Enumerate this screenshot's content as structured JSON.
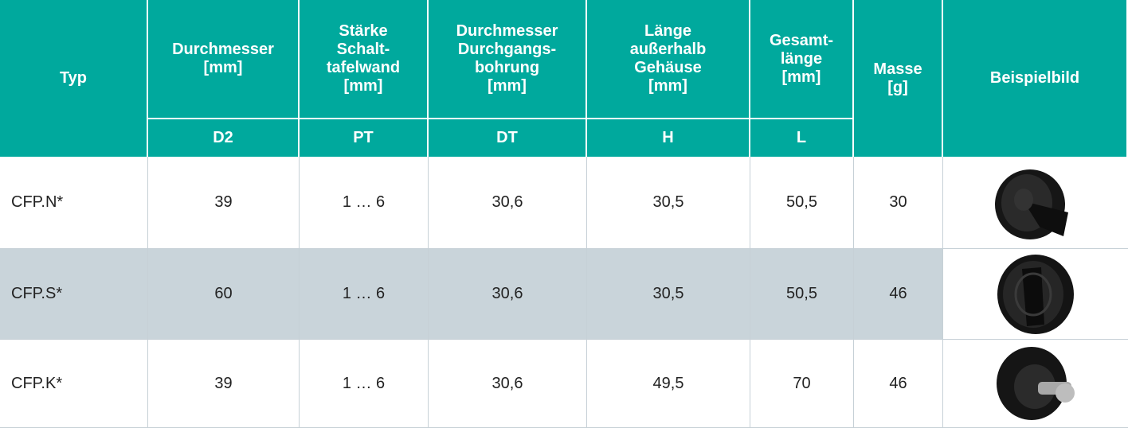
{
  "table": {
    "columns": [
      {
        "label": [
          "Typ"
        ]
      },
      {
        "label": [
          "Durchmesser",
          "[mm]"
        ],
        "symbol": "D2"
      },
      {
        "label": [
          "Stärke",
          "Schalt-",
          "tafelwand",
          "[mm]"
        ],
        "symbol": "PT"
      },
      {
        "label": [
          "Durchmesser",
          "Durchgangs-",
          "bohrung",
          "[mm]"
        ],
        "symbol": "DT"
      },
      {
        "label": [
          "Länge",
          "außerhalb",
          "Gehäuse",
          "[mm]"
        ],
        "symbol": "H"
      },
      {
        "label": [
          "Gesamt-",
          "länge",
          "[mm]"
        ],
        "symbol": "L"
      },
      {
        "label": [
          "Masse",
          "[g]"
        ]
      },
      {
        "label": [
          "Beispielbild"
        ]
      }
    ],
    "rows": [
      [
        "CFP.N*",
        "39",
        "1 … 6",
        "30,6",
        "30,5",
        "50,5",
        "30"
      ],
      [
        "CFP.S*",
        "60",
        "1 … 6",
        "30,6",
        "30,5",
        "50,5",
        "46"
      ],
      [
        "CFP.K*",
        "39",
        "1 … 6",
        "30,6",
        "49,5",
        "70",
        "46"
      ]
    ]
  }
}
